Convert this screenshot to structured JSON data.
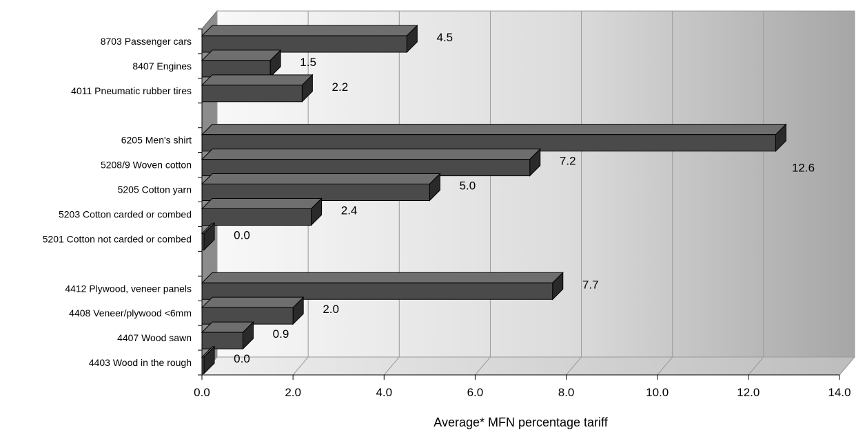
{
  "colors": {
    "bar": "#4a4a4a",
    "bar_top": "#6e6e6e",
    "bar_side": "#2a2a2a",
    "outline": "#000000"
  },
  "chart_data": {
    "type": "bar",
    "orientation": "horizontal",
    "three_d": true,
    "categories": [
      "8703 Passenger cars",
      "8407 Engines",
      "4011 Pneumatic rubber tires",
      "6205 Men's shirt",
      "5208/9 Woven cotton",
      "5205 Cotton yarn",
      "5203 Cotton carded or combed",
      "5201 Cotton not carded or combed",
      "4412 Plywood, veneer panels",
      "4408 Veneer/plywood <6mm",
      "4407 Wood sawn",
      "4403 Wood in the rough"
    ],
    "values": [
      4.5,
      1.5,
      2.2,
      12.6,
      7.2,
      5.0,
      2.4,
      0.0,
      7.7,
      2.0,
      0.9,
      0.0
    ],
    "value_labels": [
      "4.5",
      "1.5",
      "2.2",
      "12.6",
      "7.2",
      "5.0",
      "2.4",
      "0.0",
      "7.7",
      "2.0",
      "0.9",
      "0.0"
    ],
    "groups": [
      [
        0,
        1,
        2
      ],
      [
        3,
        4,
        5,
        6,
        7
      ],
      [
        8,
        9,
        10,
        11
      ]
    ],
    "xlabel": "Average* MFN percentage tariff",
    "xlim": [
      0,
      14
    ],
    "xticks": [
      0,
      2,
      4,
      6,
      8,
      10,
      12,
      14
    ],
    "xtick_labels": [
      "0.0",
      "2.0",
      "4.0",
      "6.0",
      "8.0",
      "10.0",
      "12.0",
      "14.0"
    ],
    "grid": true
  }
}
